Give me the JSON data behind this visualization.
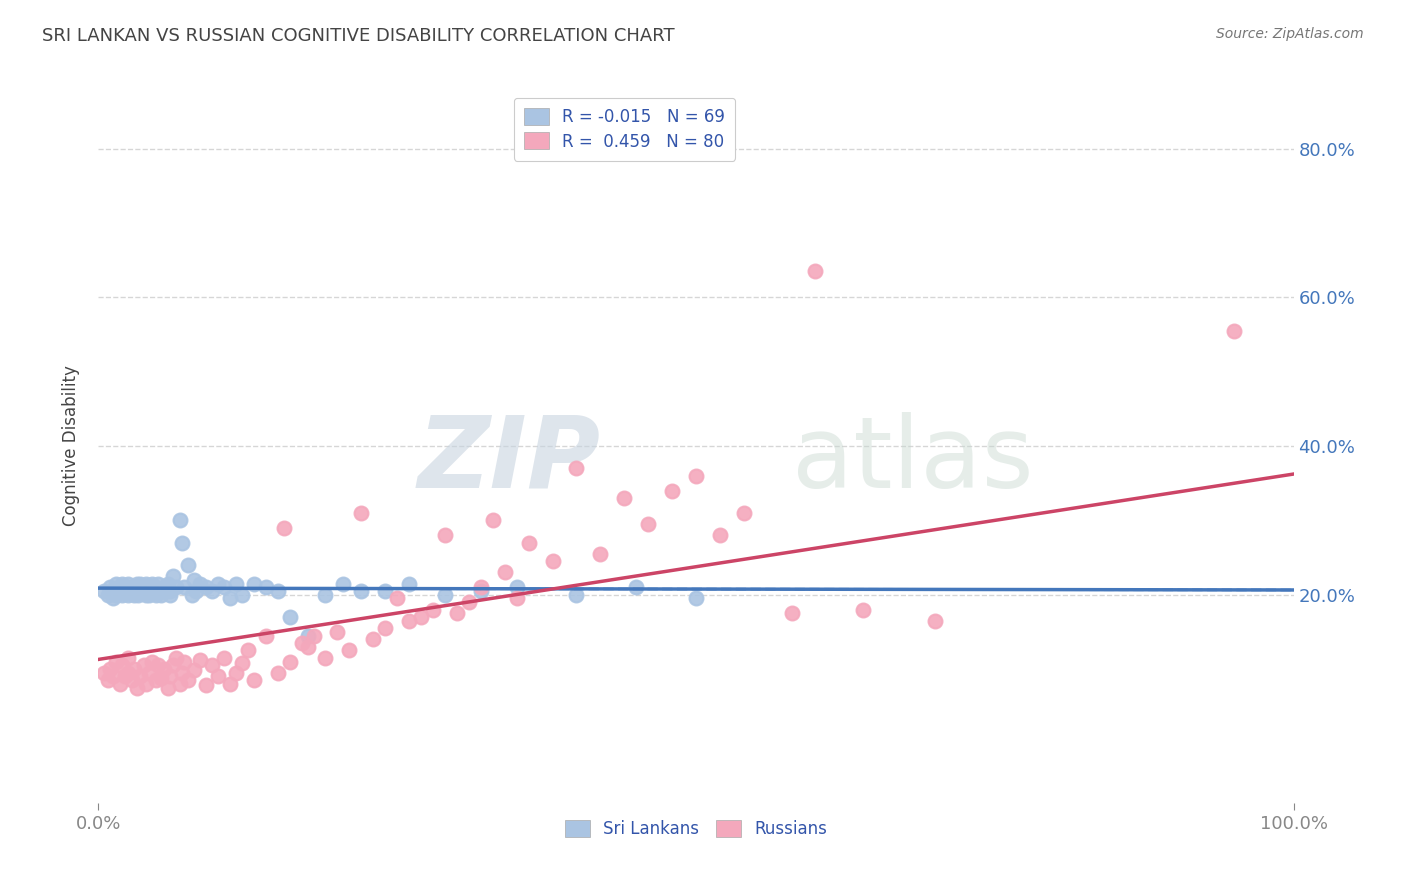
{
  "title": "SRI LANKAN VS RUSSIAN COGNITIVE DISABILITY CORRELATION CHART",
  "source": "Source: ZipAtlas.com",
  "ylabel": "Cognitive Disability",
  "xlim": [
    0,
    1.0
  ],
  "ylim": [
    -0.08,
    0.88
  ],
  "sri_lankan_R": -0.015,
  "sri_lankan_N": 69,
  "russian_R": 0.459,
  "russian_N": 80,
  "sri_lankan_color": "#aac4e2",
  "russian_color": "#f4a8bc",
  "sri_lankan_line_color": "#4477bb",
  "russian_line_color": "#cc4466",
  "grid_color": "#cccccc",
  "background_color": "#ffffff",
  "watermark_zip": "ZIP",
  "watermark_atlas": "atlas",
  "legend_label_srilankans": "Sri Lankans",
  "legend_label_russians": "Russians",
  "sri_lankan_scatter_x": [
    0.005,
    0.008,
    0.01,
    0.012,
    0.015,
    0.015,
    0.018,
    0.02,
    0.02,
    0.022,
    0.025,
    0.025,
    0.025,
    0.028,
    0.03,
    0.03,
    0.032,
    0.033,
    0.035,
    0.035,
    0.038,
    0.04,
    0.04,
    0.042,
    0.043,
    0.045,
    0.045,
    0.048,
    0.05,
    0.05,
    0.052,
    0.055,
    0.055,
    0.058,
    0.06,
    0.06,
    0.062,
    0.065,
    0.068,
    0.07,
    0.072,
    0.075,
    0.078,
    0.08,
    0.082,
    0.085,
    0.09,
    0.095,
    0.1,
    0.105,
    0.11,
    0.115,
    0.12,
    0.13,
    0.14,
    0.15,
    0.16,
    0.175,
    0.19,
    0.205,
    0.22,
    0.24,
    0.26,
    0.29,
    0.32,
    0.35,
    0.4,
    0.45,
    0.5
  ],
  "sri_lankan_scatter_y": [
    0.205,
    0.2,
    0.21,
    0.195,
    0.215,
    0.2,
    0.21,
    0.2,
    0.215,
    0.205,
    0.2,
    0.21,
    0.215,
    0.205,
    0.2,
    0.21,
    0.215,
    0.2,
    0.205,
    0.215,
    0.21,
    0.2,
    0.215,
    0.2,
    0.21,
    0.205,
    0.215,
    0.2,
    0.205,
    0.215,
    0.2,
    0.205,
    0.21,
    0.215,
    0.2,
    0.205,
    0.225,
    0.21,
    0.3,
    0.27,
    0.21,
    0.24,
    0.2,
    0.22,
    0.205,
    0.215,
    0.21,
    0.205,
    0.215,
    0.21,
    0.195,
    0.215,
    0.2,
    0.215,
    0.21,
    0.205,
    0.17,
    0.145,
    0.2,
    0.215,
    0.205,
    0.205,
    0.215,
    0.2,
    0.205,
    0.21,
    0.2,
    0.21,
    0.195
  ],
  "russian_scatter_x": [
    0.005,
    0.008,
    0.01,
    0.012,
    0.015,
    0.018,
    0.02,
    0.022,
    0.025,
    0.025,
    0.028,
    0.03,
    0.032,
    0.035,
    0.038,
    0.04,
    0.042,
    0.045,
    0.048,
    0.05,
    0.052,
    0.055,
    0.058,
    0.06,
    0.062,
    0.065,
    0.068,
    0.07,
    0.072,
    0.075,
    0.08,
    0.085,
    0.09,
    0.095,
    0.1,
    0.105,
    0.11,
    0.115,
    0.12,
    0.125,
    0.13,
    0.14,
    0.15,
    0.155,
    0.16,
    0.17,
    0.175,
    0.18,
    0.19,
    0.2,
    0.21,
    0.22,
    0.23,
    0.24,
    0.25,
    0.26,
    0.27,
    0.28,
    0.29,
    0.3,
    0.31,
    0.32,
    0.33,
    0.34,
    0.35,
    0.36,
    0.38,
    0.4,
    0.42,
    0.44,
    0.46,
    0.48,
    0.5,
    0.52,
    0.54,
    0.58,
    0.6,
    0.64,
    0.7,
    0.95
  ],
  "russian_scatter_y": [
    0.095,
    0.085,
    0.1,
    0.09,
    0.11,
    0.08,
    0.105,
    0.09,
    0.095,
    0.115,
    0.085,
    0.1,
    0.075,
    0.09,
    0.105,
    0.08,
    0.095,
    0.11,
    0.085,
    0.105,
    0.088,
    0.1,
    0.075,
    0.09,
    0.105,
    0.115,
    0.08,
    0.095,
    0.11,
    0.085,
    0.098,
    0.112,
    0.078,
    0.105,
    0.09,
    0.115,
    0.08,
    0.095,
    0.108,
    0.125,
    0.085,
    0.145,
    0.095,
    0.29,
    0.11,
    0.135,
    0.13,
    0.145,
    0.115,
    0.15,
    0.125,
    0.31,
    0.14,
    0.155,
    0.195,
    0.165,
    0.17,
    0.18,
    0.28,
    0.175,
    0.19,
    0.21,
    0.3,
    0.23,
    0.195,
    0.27,
    0.245,
    0.37,
    0.255,
    0.33,
    0.295,
    0.34,
    0.36,
    0.28,
    0.31,
    0.175,
    0.635,
    0.18,
    0.165,
    0.555
  ]
}
